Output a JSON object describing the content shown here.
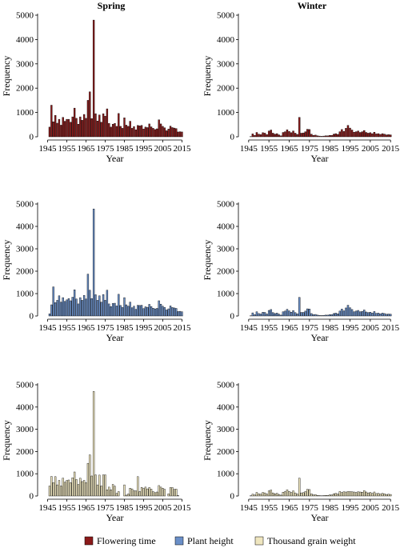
{
  "columns": [
    "Spring",
    "Winter"
  ],
  "legend": [
    {
      "label": "Flowering time",
      "color": "#8b1a1a"
    },
    {
      "label": "Plant height",
      "color": "#6a8fc8"
    },
    {
      "label": "Thousand grain weight",
      "color": "#efe6bf"
    }
  ],
  "chart_data": [
    {
      "type": "bar",
      "title": "Spring",
      "trait": "Flowering time",
      "xlabel": "Year",
      "ylabel": "Frequency",
      "xlim": [
        1945,
        2015
      ],
      "ylim": [
        0,
        5000
      ],
      "xticks": [
        1945,
        1955,
        1965,
        1975,
        1985,
        1995,
        2005,
        2015
      ],
      "yticks": [
        0,
        1000,
        2000,
        3000,
        4000,
        5000
      ],
      "x": [
        1946,
        1947,
        1948,
        1949,
        1950,
        1951,
        1952,
        1953,
        1954,
        1955,
        1956,
        1957,
        1958,
        1959,
        1960,
        1961,
        1962,
        1963,
        1964,
        1965,
        1966,
        1967,
        1968,
        1969,
        1970,
        1971,
        1972,
        1973,
        1974,
        1975,
        1976,
        1977,
        1978,
        1979,
        1980,
        1981,
        1982,
        1983,
        1984,
        1985,
        1986,
        1987,
        1988,
        1989,
        1990,
        1991,
        1992,
        1993,
        1994,
        1995,
        1996,
        1997,
        1998,
        1999,
        2000,
        2001,
        2002,
        2003,
        2004,
        2005,
        2006,
        2007,
        2008,
        2009,
        2010,
        2011,
        2012,
        2013,
        2014,
        2015
      ],
      "values": [
        400,
        1300,
        620,
        880,
        560,
        720,
        480,
        800,
        640,
        720,
        720,
        600,
        820,
        1180,
        760,
        520,
        820,
        680,
        920,
        760,
        1500,
        1850,
        750,
        4800,
        950,
        650,
        900,
        600,
        950,
        850,
        1150,
        550,
        400,
        520,
        550,
        430,
        960,
        430,
        350,
        780,
        480,
        430,
        640,
        350,
        420,
        290,
        470,
        450,
        470,
        320,
        400,
        380,
        530,
        410,
        350,
        300,
        330,
        700,
        530,
        430,
        370,
        250,
        320,
        440,
        380,
        360,
        340,
        200,
        210,
        200
      ]
    },
    {
      "type": "bar",
      "title": "Winter",
      "trait": "Flowering time",
      "xlabel": "Year",
      "ylabel": "Frequency",
      "xlim": [
        1945,
        2015
      ],
      "ylim": [
        0,
        5000
      ],
      "xticks": [
        1945,
        1955,
        1965,
        1975,
        1985,
        1995,
        2005,
        2015
      ],
      "yticks": [
        0,
        1000,
        2000,
        3000,
        4000,
        5000
      ],
      "x": [
        1946,
        1947,
        1948,
        1949,
        1950,
        1951,
        1952,
        1953,
        1954,
        1955,
        1956,
        1957,
        1958,
        1959,
        1960,
        1961,
        1962,
        1963,
        1964,
        1965,
        1966,
        1967,
        1968,
        1969,
        1970,
        1971,
        1972,
        1973,
        1974,
        1975,
        1976,
        1977,
        1978,
        1979,
        1980,
        1981,
        1982,
        1983,
        1984,
        1985,
        1986,
        1987,
        1988,
        1989,
        1990,
        1991,
        1992,
        1993,
        1994,
        1995,
        1996,
        1997,
        1998,
        1999,
        2000,
        2001,
        2002,
        2003,
        2004,
        2005,
        2006,
        2007,
        2008,
        2009,
        2010,
        2011,
        2012,
        2013,
        2014,
        2015
      ],
      "values": [
        10,
        120,
        60,
        180,
        110,
        90,
        170,
        150,
        90,
        240,
        280,
        150,
        110,
        130,
        80,
        40,
        180,
        210,
        290,
        220,
        170,
        240,
        150,
        100,
        800,
        150,
        160,
        210,
        310,
        300,
        110,
        60,
        70,
        40,
        30,
        20,
        30,
        40,
        40,
        60,
        60,
        110,
        130,
        100,
        210,
        300,
        220,
        350,
        470,
        360,
        280,
        190,
        210,
        240,
        180,
        210,
        260,
        180,
        150,
        170,
        130,
        190,
        120,
        130,
        100,
        130,
        110,
        80,
        90,
        80
      ]
    },
    {
      "type": "bar",
      "title": "",
      "trait": "Plant height",
      "xlabel": "Year",
      "ylabel": "Frequency",
      "xlim": [
        1945,
        2015
      ],
      "ylim": [
        0,
        5000
      ],
      "xticks": [
        1945,
        1955,
        1965,
        1975,
        1985,
        1995,
        2005,
        2015
      ],
      "yticks": [
        0,
        1000,
        2000,
        3000,
        4000,
        5000
      ],
      "x": [
        1946,
        1947,
        1948,
        1949,
        1950,
        1951,
        1952,
        1953,
        1954,
        1955,
        1956,
        1957,
        1958,
        1959,
        1960,
        1961,
        1962,
        1963,
        1964,
        1965,
        1966,
        1967,
        1968,
        1969,
        1970,
        1971,
        1972,
        1973,
        1974,
        1975,
        1976,
        1977,
        1978,
        1979,
        1980,
        1981,
        1982,
        1983,
        1984,
        1985,
        1986,
        1987,
        1988,
        1989,
        1990,
        1991,
        1992,
        1993,
        1994,
        1995,
        1996,
        1997,
        1998,
        1999,
        2000,
        2001,
        2002,
        2003,
        2004,
        2005,
        2006,
        2007,
        2008,
        2009,
        2010,
        2011,
        2012,
        2013,
        2014,
        2015
      ],
      "values": [
        100,
        500,
        1300,
        600,
        700,
        900,
        620,
        820,
        650,
        720,
        780,
        680,
        840,
        1170,
        760,
        540,
        820,
        700,
        920,
        760,
        1870,
        1150,
        780,
        4780,
        950,
        700,
        900,
        620,
        960,
        700,
        1150,
        540,
        420,
        560,
        570,
        450,
        970,
        470,
        380,
        820,
        500,
        440,
        620,
        370,
        440,
        300,
        480,
        470,
        480,
        330,
        410,
        390,
        520,
        420,
        350,
        320,
        340,
        680,
        530,
        440,
        380,
        270,
        320,
        450,
        380,
        360,
        340,
        200,
        210,
        190
      ]
    },
    {
      "type": "bar",
      "title": "",
      "trait": "Plant height",
      "xlabel": "Year",
      "ylabel": "Frequency",
      "xlim": [
        1945,
        2015
      ],
      "ylim": [
        0,
        5000
      ],
      "xticks": [
        1945,
        1955,
        1965,
        1975,
        1985,
        1995,
        2005,
        2015
      ],
      "yticks": [
        0,
        1000,
        2000,
        3000,
        4000,
        5000
      ],
      "x": [
        1946,
        1947,
        1948,
        1949,
        1950,
        1951,
        1952,
        1953,
        1954,
        1955,
        1956,
        1957,
        1958,
        1959,
        1960,
        1961,
        1962,
        1963,
        1964,
        1965,
        1966,
        1967,
        1968,
        1969,
        1970,
        1971,
        1972,
        1973,
        1974,
        1975,
        1976,
        1977,
        1978,
        1979,
        1980,
        1981,
        1982,
        1983,
        1984,
        1985,
        1986,
        1987,
        1988,
        1989,
        1990,
        1991,
        1992,
        1993,
        1994,
        1995,
        1996,
        1997,
        1998,
        1999,
        2000,
        2001,
        2002,
        2003,
        2004,
        2005,
        2006,
        2007,
        2008,
        2009,
        2010,
        2011,
        2012,
        2013,
        2014,
        2015
      ],
      "values": [
        10,
        140,
        60,
        190,
        110,
        90,
        170,
        160,
        90,
        250,
        290,
        150,
        110,
        130,
        80,
        40,
        190,
        220,
        300,
        230,
        170,
        240,
        150,
        100,
        830,
        160,
        160,
        220,
        320,
        310,
        110,
        60,
        70,
        40,
        30,
        20,
        30,
        40,
        40,
        60,
        60,
        110,
        130,
        100,
        220,
        310,
        230,
        360,
        480,
        370,
        290,
        190,
        220,
        250,
        190,
        210,
        270,
        180,
        150,
        170,
        130,
        200,
        120,
        130,
        100,
        130,
        110,
        80,
        90,
        80
      ]
    },
    {
      "type": "bar",
      "title": "",
      "trait": "Thousand grain weight",
      "xlabel": "Year",
      "ylabel": "Frequency",
      "xlim": [
        1945,
        2015
      ],
      "ylim": [
        0,
        5000
      ],
      "xticks": [
        1945,
        1955,
        1965,
        1975,
        1985,
        1995,
        2005,
        2015
      ],
      "yticks": [
        0,
        1000,
        2000,
        3000,
        4000,
        5000
      ],
      "x": [
        1946,
        1947,
        1948,
        1949,
        1950,
        1951,
        1952,
        1953,
        1954,
        1955,
        1956,
        1957,
        1958,
        1959,
        1960,
        1961,
        1962,
        1963,
        1964,
        1965,
        1966,
        1967,
        1968,
        1969,
        1970,
        1971,
        1972,
        1973,
        1974,
        1975,
        1976,
        1977,
        1978,
        1979,
        1980,
        1981,
        1982,
        1983,
        1984,
        1985,
        1986,
        1987,
        1988,
        1989,
        1990,
        1991,
        1992,
        1993,
        1994,
        1995,
        1996,
        1997,
        1998,
        1999,
        2000,
        2001,
        2002,
        2003,
        2004,
        2005,
        2006,
        2007,
        2008,
        2009,
        2010,
        2011,
        2012,
        2013,
        2014,
        2015
      ],
      "values": [
        450,
        880,
        600,
        870,
        500,
        700,
        450,
        800,
        620,
        700,
        720,
        600,
        820,
        1080,
        740,
        520,
        800,
        650,
        700,
        600,
        1470,
        1850,
        900,
        4700,
        950,
        500,
        940,
        450,
        950,
        950,
        280,
        400,
        280,
        520,
        440,
        120,
        200,
        0,
        0,
        500,
        40,
        90,
        350,
        320,
        250,
        230,
        870,
        200,
        390,
        340,
        400,
        320,
        380,
        310,
        200,
        150,
        180,
        470,
        400,
        350,
        300,
        0,
        100,
        380,
        380,
        300,
        310,
        20,
        0,
        0
      ]
    },
    {
      "type": "bar",
      "title": "",
      "trait": "Thousand grain weight",
      "xlabel": "Year",
      "ylabel": "Frequency",
      "xlim": [
        1945,
        2015
      ],
      "ylim": [
        0,
        5000
      ],
      "xticks": [
        1945,
        1955,
        1965,
        1975,
        1985,
        1995,
        2005,
        2015
      ],
      "yticks": [
        0,
        1000,
        2000,
        3000,
        4000,
        5000
      ],
      "x": [
        1946,
        1947,
        1948,
        1949,
        1950,
        1951,
        1952,
        1953,
        1954,
        1955,
        1956,
        1957,
        1958,
        1959,
        1960,
        1961,
        1962,
        1963,
        1964,
        1965,
        1966,
        1967,
        1968,
        1969,
        1970,
        1971,
        1972,
        1973,
        1974,
        1975,
        1976,
        1977,
        1978,
        1979,
        1980,
        1981,
        1982,
        1983,
        1984,
        1985,
        1986,
        1987,
        1988,
        1989,
        1990,
        1991,
        1992,
        1993,
        1994,
        1995,
        1996,
        1997,
        1998,
        1999,
        2000,
        2001,
        2002,
        2003,
        2004,
        2005,
        2006,
        2007,
        2008,
        2009,
        2010,
        2011,
        2012,
        2013,
        2014,
        2015
      ],
      "values": [
        10,
        80,
        50,
        160,
        100,
        80,
        160,
        140,
        90,
        230,
        270,
        140,
        100,
        120,
        70,
        40,
        170,
        200,
        280,
        210,
        160,
        230,
        140,
        90,
        800,
        140,
        150,
        200,
        300,
        290,
        100,
        50,
        60,
        30,
        20,
        10,
        20,
        30,
        30,
        50,
        50,
        100,
        120,
        90,
        200,
        160,
        190,
        180,
        200,
        200,
        190,
        180,
        160,
        190,
        180,
        170,
        240,
        180,
        140,
        160,
        120,
        180,
        110,
        120,
        90,
        120,
        100,
        70,
        80,
        70
      ]
    }
  ]
}
